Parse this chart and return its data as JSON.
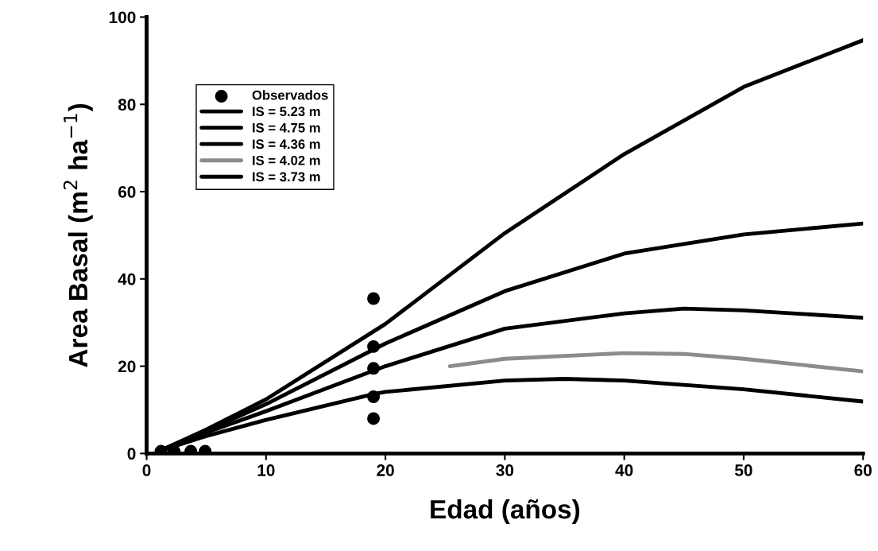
{
  "chart_data": {
    "type": "line",
    "xlabel": "Edad (años)",
    "ylabel": "Area Basal (m$^{2}$ ha$^{−1}$)",
    "xlim": [
      0,
      60
    ],
    "ylim": [
      0,
      100
    ],
    "xticks": [
      0,
      10,
      20,
      30,
      40,
      50,
      60
    ],
    "yticks": [
      0,
      20,
      40,
      60,
      80,
      100
    ],
    "legend": "top left",
    "grid": false,
    "marker": "none",
    "line_style": "solid",
    "series": [
      {
        "name": "Observados",
        "type": "scatter",
        "marker": "circle",
        "color": "#000000",
        "x": [
          1.2,
          2.3,
          3.7,
          4.9,
          19,
          19,
          19,
          19,
          19
        ],
        "values": [
          0.5,
          0.5,
          0.5,
          0.5,
          35.5,
          24.5,
          19.5,
          13,
          8
        ]
      },
      {
        "name": "IS = 5.23 m",
        "color": "#000000",
        "x": [
          1,
          5,
          10,
          20,
          30,
          40,
          50,
          60
        ],
        "values": [
          0.5,
          5.5,
          12.4,
          29.7,
          50.5,
          68.6,
          84,
          94.7
        ]
      },
      {
        "name": "IS = 4.75 m",
        "color": "#000000",
        "x": [
          1,
          5,
          10,
          20,
          30,
          40,
          50,
          60
        ],
        "values": [
          0.5,
          5.2,
          11.3,
          25.2,
          37.2,
          45.8,
          50.2,
          52.7
        ]
      },
      {
        "name": "IS = 4.36 m",
        "color": "#000000",
        "x": [
          1,
          5,
          10,
          20,
          30,
          40,
          45,
          50,
          60
        ],
        "values": [
          0.5,
          4.8,
          9.7,
          20,
          28.6,
          32.1,
          33.2,
          32.8,
          31.1
        ]
      },
      {
        "name": "IS = 4.02 m",
        "color": "#8c8c8c",
        "x": [
          25.4,
          30,
          40,
          45,
          50,
          60
        ],
        "values": [
          20,
          21.7,
          23,
          22.8,
          21.7,
          18.8
        ]
      },
      {
        "name": "IS = 3.73 m",
        "color": "#000000",
        "x": [
          1,
          5,
          10,
          19,
          20,
          30,
          35,
          40,
          50,
          60
        ],
        "values": [
          0.5,
          4,
          7.7,
          13.6,
          14.1,
          16.7,
          17.1,
          16.7,
          14.7,
          11.9
        ]
      }
    ]
  }
}
